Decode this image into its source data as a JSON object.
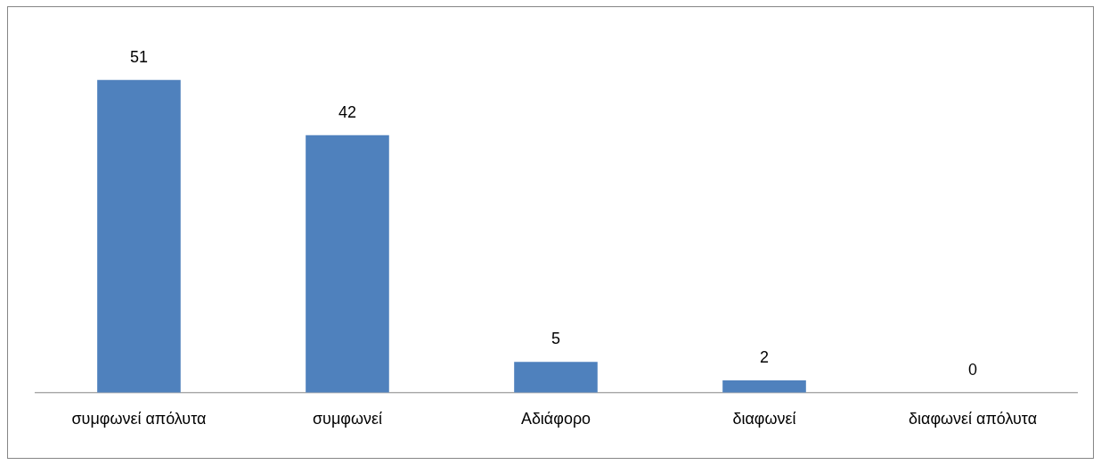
{
  "chart_data": {
    "type": "bar",
    "categories": [
      "συμφωνεί απόλυτα",
      "συμφωνεί",
      "Αδιάφορο",
      "διαφωνεί",
      "διαφωνεί απόλυτα"
    ],
    "values": [
      51,
      42,
      5,
      2,
      0
    ],
    "color": "#4f81bd",
    "data_labels": true,
    "grid": false,
    "legend": false
  }
}
